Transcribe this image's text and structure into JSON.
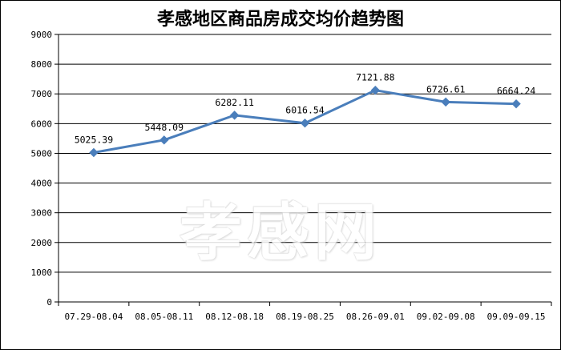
{
  "chart_data": {
    "type": "line",
    "title": "孝感地区商品房成交均价趋势图",
    "categories": [
      "07.29-08.04",
      "08.05-08.11",
      "08.12-08.18",
      "08.19-08.25",
      "08.26-09.01",
      "09.02-09.08",
      "09.09-09.15"
    ],
    "series": [
      {
        "values": [
          5025.39,
          5448.09,
          6282.11,
          6016.54,
          7121.88,
          6726.61,
          6664.24
        ],
        "labels": [
          "5025.39",
          "5448.09",
          "6282.11",
          "6016.54",
          "7121.88",
          "6726.61",
          "6664.24"
        ],
        "color": "#4A7EBB"
      }
    ],
    "ylim": [
      0,
      9000
    ],
    "yticks": [
      "0",
      "1000",
      "2000",
      "3000",
      "4000",
      "5000",
      "6000",
      "7000",
      "8000",
      "9000"
    ],
    "grid": true,
    "xlabel": "",
    "ylabel": ""
  },
  "watermark": "孝感网"
}
